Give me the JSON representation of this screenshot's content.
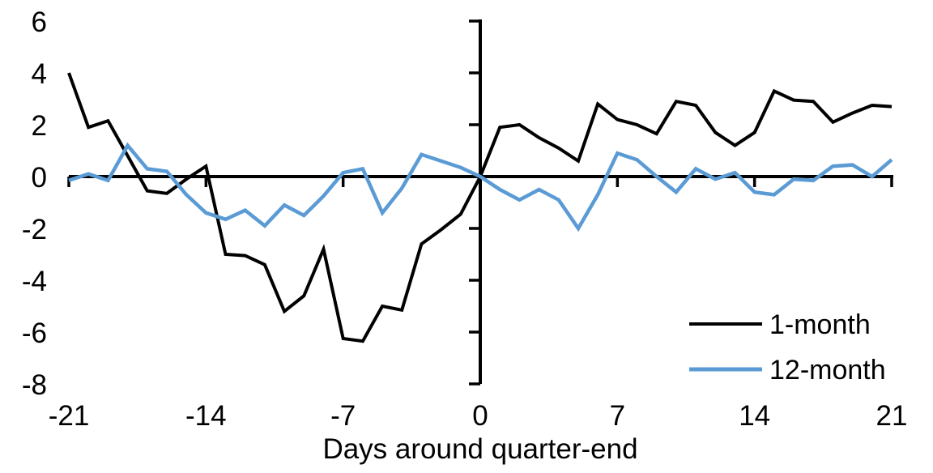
{
  "chart_data": {
    "type": "line",
    "title": "",
    "xlabel": "Days around quarter-end",
    "ylabel": "",
    "x": [
      -21,
      -20,
      -19,
      -18,
      -17,
      -16,
      -15,
      -14,
      -13,
      -12,
      -11,
      -10,
      -9,
      -8,
      -7,
      -6,
      -5,
      -4,
      -3,
      -2,
      -1,
      0,
      1,
      2,
      3,
      4,
      5,
      6,
      7,
      8,
      9,
      10,
      11,
      12,
      13,
      14,
      15,
      16,
      17,
      18,
      19,
      20,
      21
    ],
    "series": [
      {
        "name": "1-month",
        "color": "#000000",
        "values": [
          4.0,
          1.9,
          2.15,
          0.8,
          -0.55,
          -0.65,
          -0.1,
          0.4,
          -3.0,
          -3.05,
          -3.4,
          -5.2,
          -4.6,
          -2.8,
          -6.25,
          -6.35,
          -5.0,
          -5.15,
          -2.6,
          -2.05,
          -1.45,
          0.0,
          1.9,
          2.0,
          1.5,
          1.1,
          0.6,
          2.8,
          2.2,
          2.0,
          1.65,
          2.9,
          2.75,
          1.7,
          1.2,
          1.7,
          3.3,
          2.95,
          2.9,
          2.1,
          2.45,
          2.75,
          2.7
        ]
      },
      {
        "name": "12-month",
        "color": "#5B9BD5",
        "values": [
          -0.15,
          0.1,
          -0.15,
          1.2,
          0.3,
          0.2,
          -0.7,
          -1.4,
          -1.65,
          -1.3,
          -1.9,
          -1.1,
          -1.5,
          -0.75,
          0.15,
          0.3,
          -1.4,
          -0.45,
          0.85,
          0.6,
          0.35,
          0.0,
          -0.5,
          -0.9,
          -0.5,
          -0.9,
          -2.0,
          -0.7,
          0.9,
          0.65,
          0.0,
          -0.6,
          0.3,
          -0.1,
          0.15,
          -0.6,
          -0.7,
          -0.1,
          -0.15,
          0.4,
          0.45,
          0.0,
          0.65
        ]
      }
    ],
    "xlim": [
      -21,
      21
    ],
    "ylim": [
      -8,
      6
    ],
    "xticks": [
      -21,
      -14,
      -7,
      0,
      7,
      14,
      21
    ],
    "yticks": [
      6,
      4,
      2,
      0,
      -2,
      -4,
      -6,
      -8
    ],
    "grid": false,
    "legend_position": "lower right"
  }
}
